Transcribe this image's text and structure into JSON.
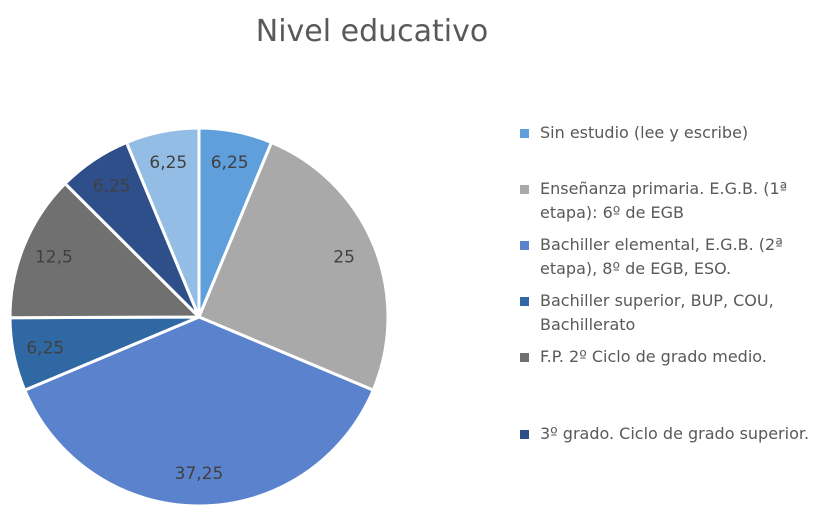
{
  "chart_data": {
    "type": "pie",
    "title": "Nivel educativo",
    "categories": [
      "Sin estudio (lee y escribe)",
      "Enseñanza primaria. E.G.B. (1ª etapa): 6º de EGB",
      "Bachiller elemental, E.G.B. (2ª etapa), 8º de EGB, ESO.",
      "Bachiller superior, BUP, COU, Bachillerato",
      "F.P. 2º  Ciclo de grado medio.",
      "3º grado. Ciclo de grado superior.",
      null
    ],
    "values": [
      6.25,
      25,
      37.25,
      6.25,
      12.5,
      6.25,
      6.25
    ],
    "value_labels": [
      "6,25",
      "25",
      "37,25",
      "6,25",
      "12,5",
      "6,25",
      "6,25"
    ],
    "colors": [
      "#5f9fdc",
      "#a9a9a9",
      "#5b82cc",
      "#2f68a3",
      "#707070",
      "#2e4f8a",
      "#94bde6"
    ],
    "legend": "right"
  }
}
